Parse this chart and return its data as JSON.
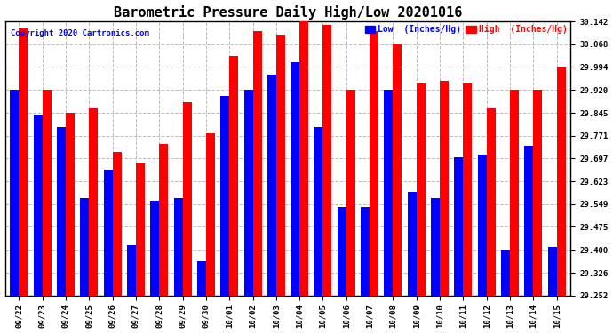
{
  "title": "Barometric Pressure Daily High/Low 20201016",
  "copyright": "Copyright 2020 Cartronics.com",
  "legend_low": "Low  (Inches/Hg)",
  "legend_high": "High  (Inches/Hg)",
  "ylim": [
    29.252,
    30.142
  ],
  "yticks": [
    29.252,
    29.326,
    29.4,
    29.475,
    29.549,
    29.623,
    29.697,
    29.771,
    29.845,
    29.92,
    29.994,
    30.068,
    30.142
  ],
  "background_color": "#ffffff",
  "bar_color_low": "#0000ff",
  "bar_color_high": "#ff0000",
  "grid_color": "#bbbbbb",
  "categories": [
    "09/22",
    "09/23",
    "09/24",
    "09/25",
    "09/26",
    "09/27",
    "09/28",
    "09/29",
    "09/30",
    "10/01",
    "10/02",
    "10/03",
    "10/04",
    "10/05",
    "10/06",
    "10/07",
    "10/08",
    "10/09",
    "10/10",
    "10/11",
    "10/12",
    "10/13",
    "10/14",
    "10/15"
  ],
  "high_values": [
    30.12,
    29.92,
    29.845,
    29.86,
    29.72,
    29.68,
    29.745,
    29.88,
    29.78,
    30.03,
    30.11,
    30.1,
    30.142,
    30.13,
    29.92,
    30.11,
    30.068,
    29.94,
    29.95,
    29.94,
    29.86,
    29.92,
    29.92,
    29.994
  ],
  "low_values": [
    29.92,
    29.84,
    29.8,
    29.57,
    29.66,
    29.415,
    29.56,
    29.57,
    29.365,
    29.9,
    29.92,
    29.97,
    30.01,
    29.8,
    29.54,
    29.54,
    29.92,
    29.59,
    29.57,
    29.7,
    29.71,
    29.4,
    29.74,
    29.41
  ],
  "title_fontsize": 11,
  "tick_fontsize": 6.5,
  "legend_fontsize": 7,
  "copyright_fontsize": 6.5,
  "bar_bottom": 29.252
}
